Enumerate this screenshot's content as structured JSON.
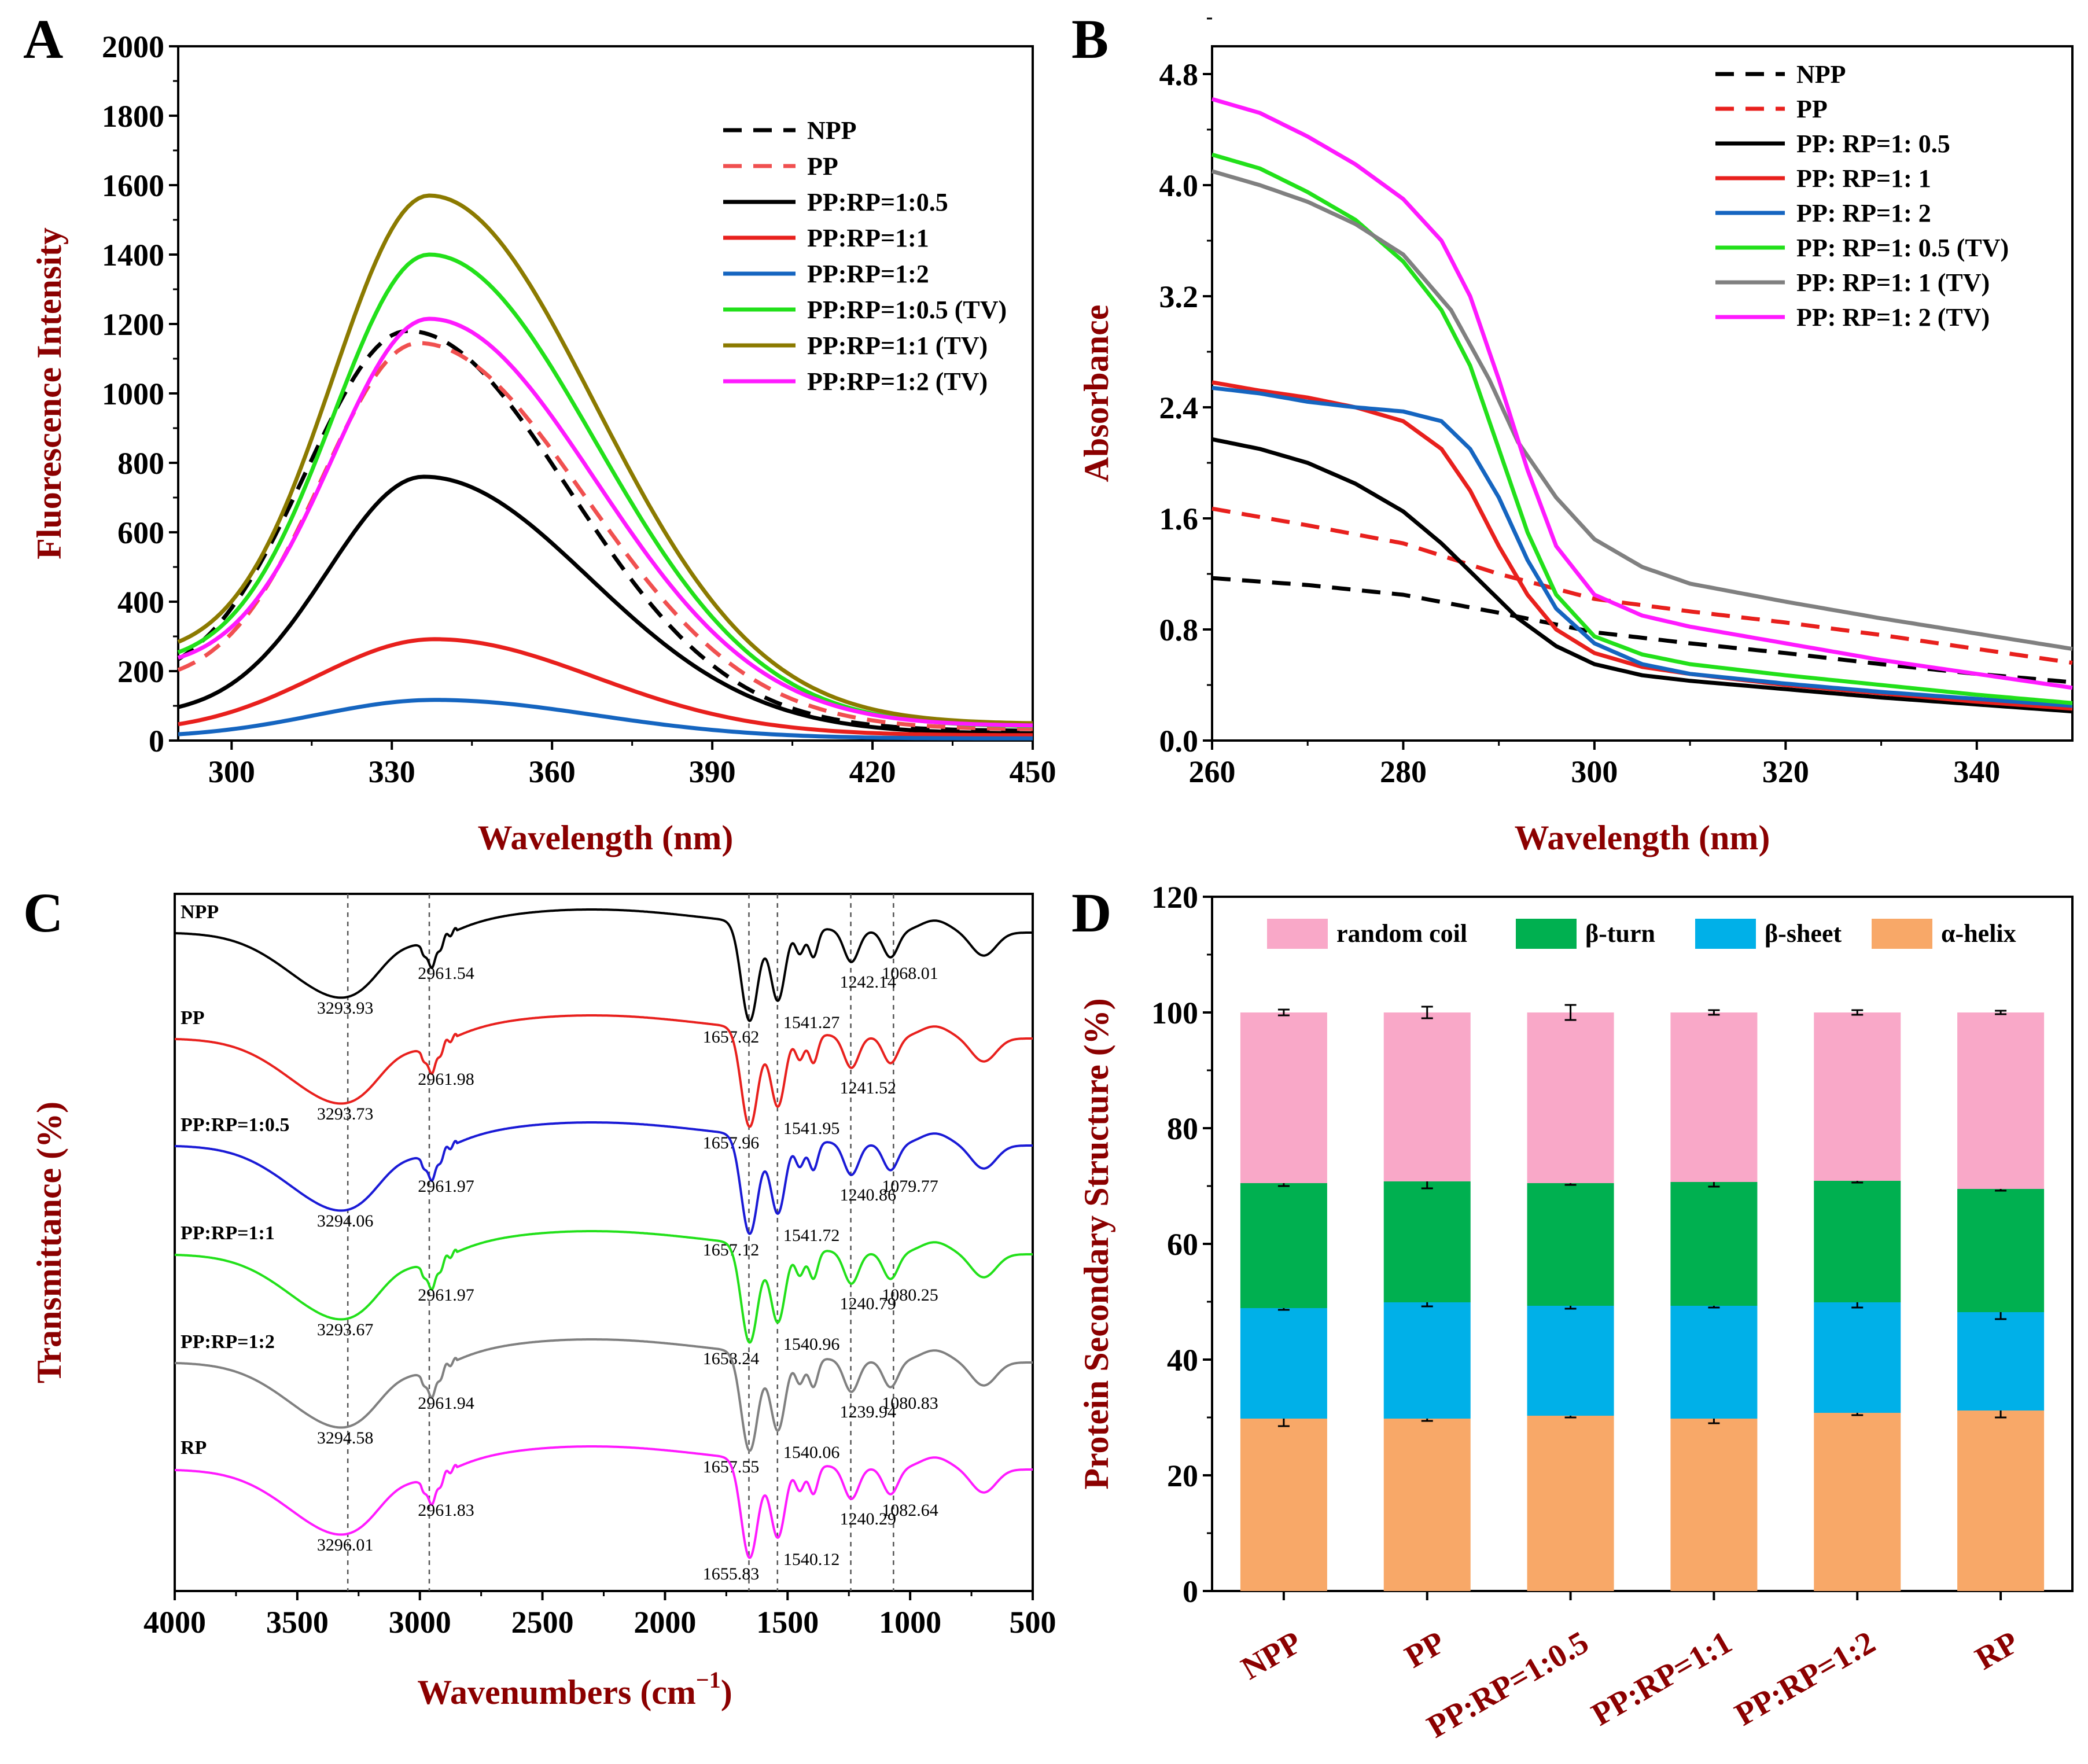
{
  "colors": {
    "black": "#000000",
    "red": "#e8201d",
    "blue": "#1565c0",
    "green": "#22e01a",
    "olive": "#8b7a00",
    "magenta": "#ff1aff",
    "gray": "#808080",
    "pp_dash": "#f05050",
    "axis_title": "#8b0000",
    "random_coil": "#f9a8c8",
    "beta_turn": "#00b050",
    "beta_sheet": "#00b0e8",
    "alpha_helix": "#f8a868"
  },
  "chart_data": [
    {
      "panel": "A",
      "type": "line",
      "title": "",
      "xlabel": "Wavelength (nm)",
      "ylabel": "Fluorescence Intensity",
      "xlim": [
        290,
        450
      ],
      "ylim": [
        0,
        2000
      ],
      "xticks": [
        "300",
        "330",
        "360",
        "390",
        "420",
        "450"
      ],
      "yticks": [
        "0",
        "200",
        "400",
        "600",
        "800",
        "1000",
        "1200",
        "1400",
        "1600",
        "1800",
        "2000"
      ],
      "legend_position": "top-right",
      "series": [
        {
          "name": "NPP",
          "color": "#000000",
          "dash": true,
          "peak_x": 333,
          "peak_y": 1180,
          "start": 155,
          "end": 28,
          "sl": 19,
          "sr": 30
        },
        {
          "name": "PP",
          "color": "#f05050",
          "dash": true,
          "peak_x": 335,
          "peak_y": 1145,
          "start": 160,
          "end": 32,
          "sl": 18,
          "sr": 31
        },
        {
          "name": "PP:RP=1:0.5",
          "color": "#000000",
          "dash": false,
          "peak_x": 336,
          "peak_y": 760,
          "start": 70,
          "end": 20,
          "sl": 18,
          "sr": 31
        },
        {
          "name": "PP:RP=1:1",
          "color": "#e8201d",
          "dash": false,
          "peak_x": 338,
          "peak_y": 292,
          "start": 22,
          "end": 15,
          "sl": 22,
          "sr": 30
        },
        {
          "name": "PP:RP=1:2",
          "color": "#1565c0",
          "dash": false,
          "peak_x": 338,
          "peak_y": 117,
          "start": 8,
          "end": 6,
          "sl": 22,
          "sr": 30
        },
        {
          "name": "PP:RP=1:0.5 (TV)",
          "color": "#22e01a",
          "dash": false,
          "peak_x": 337,
          "peak_y": 1400,
          "start": 215,
          "end": 40,
          "sl": 18,
          "sr": 31
        },
        {
          "name": "PP:RP=1:1 (TV)",
          "color": "#8b7a00",
          "dash": false,
          "peak_x": 337,
          "peak_y": 1570,
          "start": 240,
          "end": 48,
          "sl": 18,
          "sr": 31
        },
        {
          "name": "PP:RP=1:2 (TV)",
          "color": "#ff1aff",
          "dash": false,
          "peak_x": 337,
          "peak_y": 1215,
          "start": 205,
          "end": 42,
          "sl": 18,
          "sr": 31
        }
      ]
    },
    {
      "panel": "B",
      "type": "line",
      "title": "",
      "xlabel": "Wavelength (nm)",
      "ylabel": "Absorbance",
      "xlim": [
        260,
        350
      ],
      "ylim": [
        0,
        5
      ],
      "xticks": [
        "260",
        "280",
        "300",
        "320",
        "340"
      ],
      "yticks": [
        "0.0",
        "0.8",
        "1.6",
        "2.4",
        "3.2",
        "4.0",
        "4.8"
      ],
      "legend_position": "top-right",
      "series": [
        {
          "name": "NPP",
          "color": "#000000",
          "dash": true,
          "points": [
            [
              260,
              1.17
            ],
            [
              270,
              1.12
            ],
            [
              280,
              1.05
            ],
            [
              290,
              0.92
            ],
            [
              300,
              0.78
            ],
            [
              310,
              0.7
            ],
            [
              320,
              0.63
            ],
            [
              330,
              0.55
            ],
            [
              340,
              0.48
            ],
            [
              350,
              0.42
            ]
          ]
        },
        {
          "name": "PP",
          "color": "#e8201d",
          "dash": true,
          "points": [
            [
              260,
              1.67
            ],
            [
              270,
              1.55
            ],
            [
              280,
              1.42
            ],
            [
              290,
              1.2
            ],
            [
              300,
              1.02
            ],
            [
              310,
              0.93
            ],
            [
              320,
              0.85
            ],
            [
              330,
              0.76
            ],
            [
              340,
              0.66
            ],
            [
              350,
              0.56
            ]
          ]
        },
        {
          "name": "PP: RP=1: 0.5",
          "color": "#000000",
          "dash": false,
          "points": [
            [
              260,
              2.17
            ],
            [
              265,
              2.1
            ],
            [
              270,
              2.0
            ],
            [
              275,
              1.85
            ],
            [
              280,
              1.65
            ],
            [
              284,
              1.42
            ],
            [
              288,
              1.15
            ],
            [
              292,
              0.88
            ],
            [
              296,
              0.68
            ],
            [
              300,
              0.55
            ],
            [
              305,
              0.47
            ],
            [
              310,
              0.43
            ],
            [
              320,
              0.37
            ],
            [
              330,
              0.31
            ],
            [
              340,
              0.26
            ],
            [
              350,
              0.21
            ]
          ]
        },
        {
          "name": "PP: RP=1: 1",
          "color": "#e8201d",
          "dash": false,
          "points": [
            [
              260,
              2.58
            ],
            [
              265,
              2.52
            ],
            [
              270,
              2.47
            ],
            [
              275,
              2.4
            ],
            [
              280,
              2.3
            ],
            [
              284,
              2.1
            ],
            [
              287,
              1.8
            ],
            [
              290,
              1.4
            ],
            [
              293,
              1.05
            ],
            [
              296,
              0.8
            ],
            [
              300,
              0.63
            ],
            [
              305,
              0.53
            ],
            [
              310,
              0.48
            ],
            [
              320,
              0.4
            ],
            [
              330,
              0.34
            ],
            [
              340,
              0.28
            ],
            [
              350,
              0.23
            ]
          ]
        },
        {
          "name": "PP: RP=1: 2",
          "color": "#1565c0",
          "dash": false,
          "points": [
            [
              260,
              2.54
            ],
            [
              265,
              2.5
            ],
            [
              270,
              2.44
            ],
            [
              275,
              2.4
            ],
            [
              280,
              2.37
            ],
            [
              284,
              2.3
            ],
            [
              287,
              2.1
            ],
            [
              290,
              1.75
            ],
            [
              293,
              1.3
            ],
            [
              296,
              0.95
            ],
            [
              300,
              0.7
            ],
            [
              305,
              0.55
            ],
            [
              310,
              0.48
            ],
            [
              320,
              0.41
            ],
            [
              330,
              0.35
            ],
            [
              340,
              0.3
            ],
            [
              350,
              0.25
            ]
          ]
        },
        {
          "name": "PP: RP=1: 0.5 (TV)",
          "color": "#22e01a",
          "dash": false,
          "points": [
            [
              260,
              4.22
            ],
            [
              265,
              4.12
            ],
            [
              270,
              3.95
            ],
            [
              275,
              3.75
            ],
            [
              280,
              3.45
            ],
            [
              284,
              3.1
            ],
            [
              287,
              2.7
            ],
            [
              290,
              2.1
            ],
            [
              293,
              1.5
            ],
            [
              296,
              1.05
            ],
            [
              300,
              0.75
            ],
            [
              305,
              0.62
            ],
            [
              310,
              0.55
            ],
            [
              320,
              0.47
            ],
            [
              330,
              0.4
            ],
            [
              340,
              0.33
            ],
            [
              350,
              0.27
            ]
          ]
        },
        {
          "name": "PP: RP=1: 1 (TV)",
          "color": "#808080",
          "dash": false,
          "points": [
            [
              260,
              4.1
            ],
            [
              265,
              4.0
            ],
            [
              270,
              3.88
            ],
            [
              275,
              3.72
            ],
            [
              280,
              3.5
            ],
            [
              285,
              3.1
            ],
            [
              289,
              2.6
            ],
            [
              292,
              2.15
            ],
            [
              296,
              1.75
            ],
            [
              300,
              1.45
            ],
            [
              305,
              1.25
            ],
            [
              310,
              1.13
            ],
            [
              320,
              1.0
            ],
            [
              330,
              0.88
            ],
            [
              340,
              0.77
            ],
            [
              350,
              0.66
            ]
          ]
        },
        {
          "name": "PP: RP=1: 2 (TV)",
          "color": "#ff1aff",
          "dash": false,
          "points": [
            [
              260,
              4.62
            ],
            [
              265,
              4.52
            ],
            [
              270,
              4.35
            ],
            [
              275,
              4.15
            ],
            [
              280,
              3.9
            ],
            [
              284,
              3.6
            ],
            [
              287,
              3.2
            ],
            [
              290,
              2.6
            ],
            [
              293,
              1.95
            ],
            [
              296,
              1.4
            ],
            [
              300,
              1.05
            ],
            [
              305,
              0.9
            ],
            [
              310,
              0.82
            ],
            [
              320,
              0.7
            ],
            [
              330,
              0.58
            ],
            [
              340,
              0.48
            ],
            [
              350,
              0.38
            ]
          ]
        }
      ]
    },
    {
      "panel": "C",
      "type": "line",
      "title": "",
      "xlabel": "Wavenumbers (cm",
      "xlabel_sup": "−1",
      "xlabel_close": ")",
      "ylabel": "Transmittance (%)",
      "xlim": [
        4000,
        500
      ],
      "xticks": [
        "4000",
        "3500",
        "3000",
        "2500",
        "2000",
        "1500",
        "1000",
        "500"
      ],
      "reference_lines": [
        3293.93,
        2961.54,
        1657.62,
        1541.27,
        1242.14,
        1068.01
      ],
      "series": [
        {
          "name": "NPP",
          "color": "#000000",
          "peaks": [
            "3293.93",
            "2961.54",
            "1657.62",
            "1541.27",
            "1242.14",
            "1068.01"
          ]
        },
        {
          "name": "PP",
          "color": "#e8201d",
          "peaks": [
            "3293.73",
            "2961.98",
            "1657.96",
            "1541.95",
            "1241.52"
          ]
        },
        {
          "name": "PP:RP=1:0.5",
          "color": "#1a1ad6",
          "peaks": [
            "3294.06",
            "2961.97",
            "1657.12",
            "1541.72",
            "1240.86",
            "1079.77"
          ]
        },
        {
          "name": "PP:RP=1:1",
          "color": "#22e01a",
          "peaks": [
            "3293.67",
            "2961.97",
            "1658.24",
            "1540.96",
            "1240.79",
            "1080.25"
          ]
        },
        {
          "name": "PP:RP=1:2",
          "color": "#808080",
          "peaks": [
            "3294.58",
            "2961.94",
            "1657.55",
            "1540.06",
            "1239.94",
            "1080.83"
          ]
        },
        {
          "name": "RP",
          "color": "#ff1aff",
          "peaks": [
            "3296.01",
            "2961.83",
            "1655.83",
            "1540.12",
            "1240.29",
            "1082.64"
          ]
        }
      ]
    },
    {
      "panel": "D",
      "type": "bar",
      "stacked": true,
      "title": "",
      "xlabel": "",
      "ylabel": "Protein Secondary Structure (%)",
      "ylim": [
        0,
        120
      ],
      "yticks": [
        "0",
        "20",
        "40",
        "60",
        "80",
        "100",
        "120"
      ],
      "categories": [
        "NPP",
        "PP",
        "PP:RP=1:0.5",
        "PP:RP=1:1",
        "PP:RP=1:2",
        "RP"
      ],
      "legend_position": "top",
      "series": [
        {
          "name": "α-helix",
          "color": "#f8a868",
          "values": [
            29.8,
            29.8,
            30.3,
            29.8,
            30.8,
            31.2
          ],
          "errors": [
            1.3,
            0.4,
            0.3,
            0.8,
            0.4,
            1.2
          ]
        },
        {
          "name": "β-sheet",
          "color": "#00b0e8",
          "values": [
            19.1,
            20.1,
            19.0,
            19.5,
            19.1,
            17.0
          ],
          "errors": [
            0.3,
            0.7,
            0.5,
            0.3,
            0.9,
            1.2
          ]
        },
        {
          "name": "β-turn",
          "color": "#00b050",
          "values": [
            21.6,
            20.9,
            21.2,
            21.4,
            21.0,
            21.3
          ],
          "errors": [
            0.5,
            1.2,
            0.3,
            0.8,
            0.3,
            0.3
          ]
        },
        {
          "name": "random coil",
          "color": "#f9a8c8",
          "values": [
            29.5,
            29.2,
            29.5,
            29.3,
            29.1,
            30.5
          ],
          "errors": [
            0.5,
            1.0,
            1.3,
            0.4,
            0.4,
            0.3
          ]
        }
      ],
      "legend_order": [
        "random coil",
        "β-turn",
        "β-sheet",
        "α-helix"
      ]
    }
  ],
  "panel_labels": [
    "A",
    "B",
    "C",
    "D"
  ]
}
